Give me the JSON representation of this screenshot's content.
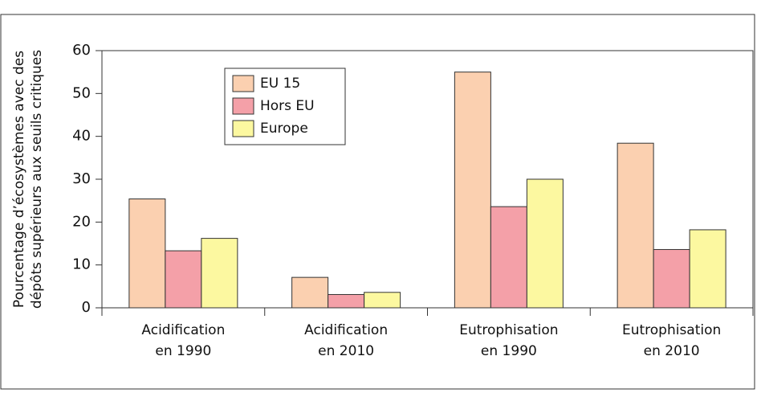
{
  "chart_data": {
    "type": "bar",
    "ylabel": [
      "Pourcentage d’écosystèmes avec des",
      "dépôts supérieurs aux seuils critiques"
    ],
    "categories": [
      [
        "Acidification",
        "en 1990"
      ],
      [
        "Acidification",
        "en 2010"
      ],
      [
        "Eutrophisation",
        "en 1990"
      ],
      [
        "Eutrophisation",
        "en 2010"
      ]
    ],
    "series": [
      {
        "name": "EU 15",
        "color": "#fbd0b0",
        "values": [
          25.4,
          7.1,
          55,
          38.4
        ]
      },
      {
        "name": "Hors EU",
        "color": "#f4a0a8",
        "values": [
          13.3,
          3.1,
          23.6,
          13.6
        ]
      },
      {
        "name": "Europe",
        "color": "#fcf8a0",
        "values": [
          16.2,
          3.6,
          30,
          18.2
        ]
      }
    ],
    "ylim": [
      0,
      60
    ],
    "yticks": [
      0,
      10,
      20,
      30,
      40,
      50,
      60
    ],
    "grid": false,
    "legend": "upper left"
  }
}
